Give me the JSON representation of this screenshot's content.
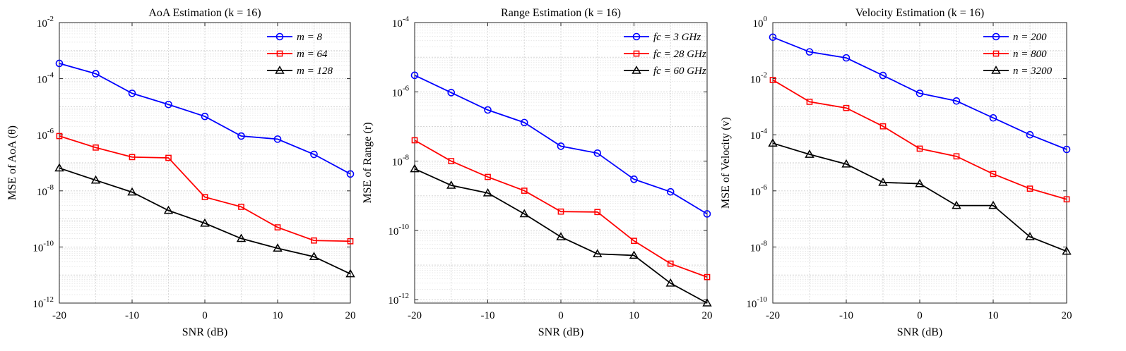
{
  "chart_data": [
    {
      "type": "line",
      "yscale": "log",
      "title": "AoA Estimation (k = 16)",
      "xlabel": "SNR (dB)",
      "ylabel": "MSE of AoA (θ)",
      "xlim": [
        -20,
        20
      ],
      "ylim": [
        1e-12,
        0.01
      ],
      "x_ticks": [
        "-20",
        "-10",
        "0",
        "10",
        "20"
      ],
      "y_ticks": [
        {
          "base": "10",
          "exp": "-12"
        },
        {
          "base": "10",
          "exp": "-10"
        },
        {
          "base": "10",
          "exp": "-8"
        },
        {
          "base": "10",
          "exp": "-6"
        },
        {
          "base": "10",
          "exp": "-4"
        },
        {
          "base": "10",
          "exp": "-2"
        }
      ],
      "grid": true,
      "legend_position": "top-right",
      "x": [
        -20,
        -15,
        -10,
        -5,
        0,
        5,
        10,
        15,
        20
      ],
      "series": [
        {
          "name": "m = 8",
          "color": "#0000ff",
          "marker": "circle",
          "values": [
            0.00035,
            0.00015,
            3e-05,
            1.2e-05,
            4.5e-06,
            9e-07,
            7e-07,
            2e-07,
            4e-08
          ]
        },
        {
          "name": "m = 64",
          "color": "#ff0000",
          "marker": "square",
          "values": [
            9e-07,
            3.5e-07,
            1.6e-07,
            1.5e-07,
            6e-09,
            2.7e-09,
            5e-10,
            1.7e-10,
            1.6e-10
          ]
        },
        {
          "name": "m = 128",
          "color": "#000000",
          "marker": "triangle",
          "values": [
            6.5e-08,
            2.4e-08,
            9e-09,
            2e-09,
            7e-10,
            2e-10,
            9e-11,
            4.5e-11,
            1.1e-11
          ]
        }
      ]
    },
    {
      "type": "line",
      "yscale": "log",
      "title": "Range Estimation (k = 16)",
      "xlabel": "SNR (dB)",
      "ylabel": "MSE of Range (r)",
      "xlim": [
        -20,
        20
      ],
      "ylim": [
        8e-13,
        0.0001
      ],
      "x_ticks": [
        "-20",
        "-10",
        "0",
        "10",
        "20"
      ],
      "y_ticks": [
        {
          "base": "10",
          "exp": "-12"
        },
        {
          "base": "10",
          "exp": "-10"
        },
        {
          "base": "10",
          "exp": "-8"
        },
        {
          "base": "10",
          "exp": "-6"
        },
        {
          "base": "10",
          "exp": "-4"
        }
      ],
      "grid": true,
      "legend_position": "top-right",
      "x": [
        -20,
        -15,
        -10,
        -5,
        0,
        5,
        10,
        15,
        20
      ],
      "series": [
        {
          "name": "fc = 3 GHz",
          "color": "#0000ff",
          "marker": "circle",
          "values": [
            3e-06,
            9.5e-07,
            3e-07,
            1.3e-07,
            2.7e-08,
            1.7e-08,
            3e-09,
            1.3e-09,
            3e-10
          ]
        },
        {
          "name": "fc = 28 GHz",
          "color": "#ff0000",
          "marker": "square",
          "values": [
            4e-08,
            1e-08,
            3.5e-09,
            1.4e-09,
            3.5e-10,
            3.4e-10,
            5e-11,
            1.1e-11,
            4.5e-12
          ]
        },
        {
          "name": "fc = 60 GHz",
          "color": "#000000",
          "marker": "triangle",
          "values": [
            6e-09,
            2e-09,
            1.2e-09,
            3e-10,
            6.5e-11,
            2.1e-11,
            1.9e-11,
            3e-12,
            8e-13
          ]
        }
      ]
    },
    {
      "type": "line",
      "yscale": "log",
      "title": "Velocity Estimation (k = 16)",
      "xlabel": "SNR (dB)",
      "ylabel": "MSE of Velocity (v)",
      "xlim": [
        -20,
        20
      ],
      "ylim": [
        1e-10,
        1
      ],
      "x_ticks": [
        "-20",
        "-10",
        "0",
        "10",
        "20"
      ],
      "y_ticks": [
        {
          "base": "10",
          "exp": "-10"
        },
        {
          "base": "10",
          "exp": "-8"
        },
        {
          "base": "10",
          "exp": "-6"
        },
        {
          "base": "10",
          "exp": "-4"
        },
        {
          "base": "10",
          "exp": "-2"
        },
        {
          "base": "10",
          "exp": "0"
        }
      ],
      "grid": true,
      "legend_position": "top-right",
      "x": [
        -20,
        -15,
        -10,
        -5,
        0,
        5,
        10,
        15,
        20
      ],
      "series": [
        {
          "name": "n = 200",
          "color": "#0000ff",
          "marker": "circle",
          "values": [
            0.3,
            0.09,
            0.055,
            0.013,
            0.003,
            0.0016,
            0.0004,
            0.0001,
            3e-05
          ]
        },
        {
          "name": "n = 800",
          "color": "#ff0000",
          "marker": "square",
          "values": [
            0.009,
            0.0015,
            0.0009,
            0.0002,
            3.2e-05,
            1.7e-05,
            4e-06,
            1.2e-06,
            5e-07
          ]
        },
        {
          "name": "n = 3200",
          "color": "#000000",
          "marker": "triangle",
          "values": [
            5e-05,
            2e-05,
            9e-06,
            2e-06,
            1.8e-06,
            3e-07,
            3e-07,
            2.3e-08,
            7e-09
          ]
        }
      ]
    }
  ]
}
